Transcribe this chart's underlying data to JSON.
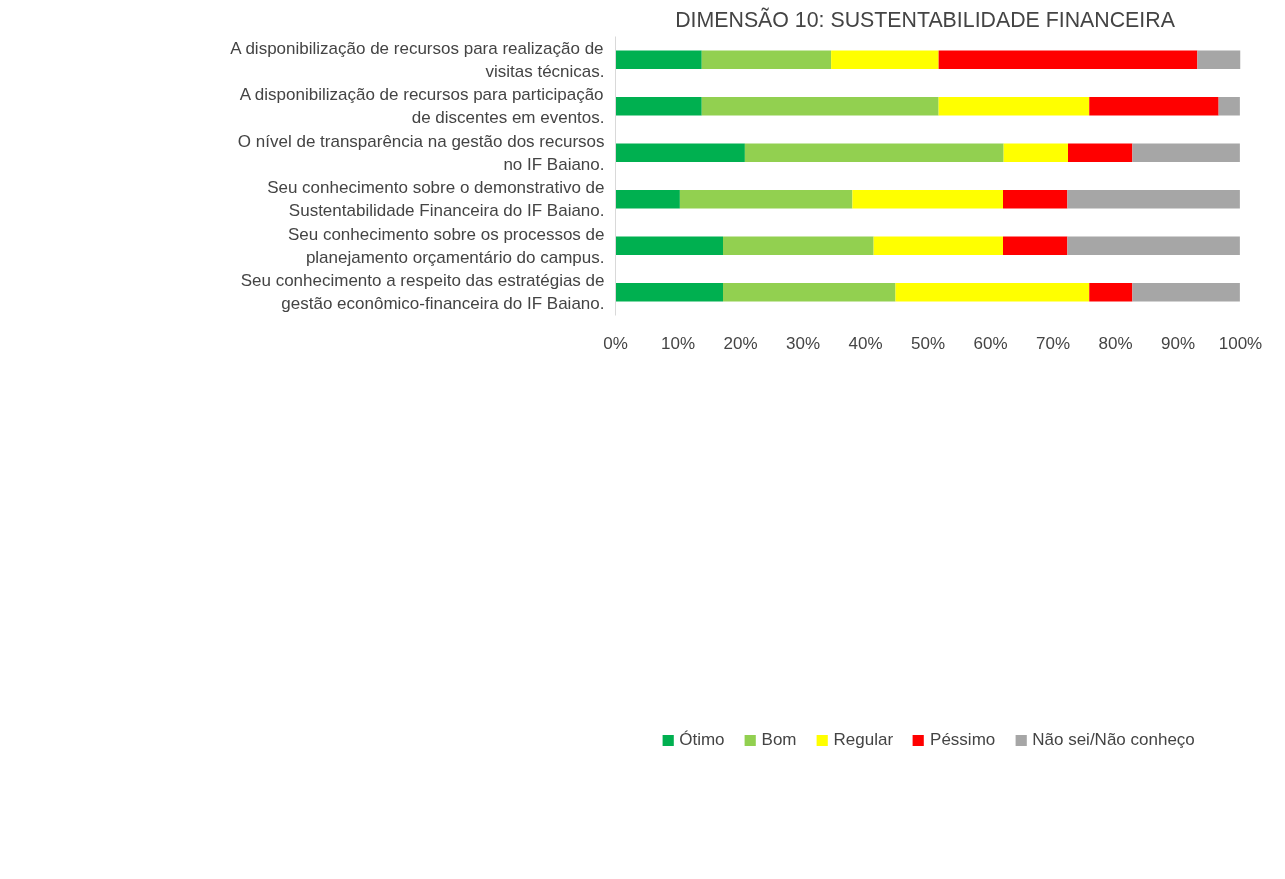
{
  "chart_data": {
    "type": "bar",
    "orientation": "horizontal",
    "stacked": true,
    "title": "DIMENSÃO 10:  SUSTENTABILIDADE FINANCEIRA",
    "categories": [
      "A disponibilização de recursos para realização de visitas técnicas.",
      "A disponibilização de recursos para participação de discentes em eventos.",
      "O nível de transparência na gestão dos recursos no IF Baiano.",
      "Seu conhecimento sobre o demonstrativo de Sustentabilidade Financeira do IF Baiano.",
      "Seu conhecimento sobre os processos de planejamento orçamentário do campus.",
      "Seu conhecimento a respeito das estratégias de gestão econômico-financeira do IF Baiano."
    ],
    "series": [
      {
        "name": "Ótimo",
        "color": "#00b050",
        "values": [
          13.8,
          13.8,
          20.7,
          10.3,
          17.2,
          17.2
        ]
      },
      {
        "name": "Bom",
        "color": "#92d050",
        "values": [
          20.7,
          37.9,
          41.4,
          27.6,
          24.1,
          27.6
        ]
      },
      {
        "name": "Regular",
        "color": "#ffff00",
        "values": [
          17.2,
          24.1,
          10.3,
          24.1,
          20.7,
          31.0
        ]
      },
      {
        "name": "Péssimo",
        "color": "#ff0000",
        "values": [
          41.4,
          20.7,
          10.3,
          10.3,
          10.3,
          6.9
        ]
      },
      {
        "name": "Não sei/Não conheço",
        "color": "#a6a6a6",
        "values": [
          6.9,
          3.4,
          17.2,
          27.6,
          27.6,
          17.2
        ]
      }
    ],
    "xlim": [
      0,
      100
    ],
    "xticks": [
      {
        "value": 0,
        "label": "0%"
      },
      {
        "value": 10,
        "label": "10%"
      },
      {
        "value": 20,
        "label": "20%"
      },
      {
        "value": 30,
        "label": "30%"
      },
      {
        "value": 40,
        "label": "40%"
      },
      {
        "value": 50,
        "label": "50%"
      },
      {
        "value": 60,
        "label": "60%"
      },
      {
        "value": 70,
        "label": "70%"
      },
      {
        "value": 80,
        "label": "80%"
      },
      {
        "value": 90,
        "label": "90%"
      },
      {
        "value": 100,
        "label": "100%"
      }
    ],
    "grid": false,
    "legend": "bottom"
  }
}
